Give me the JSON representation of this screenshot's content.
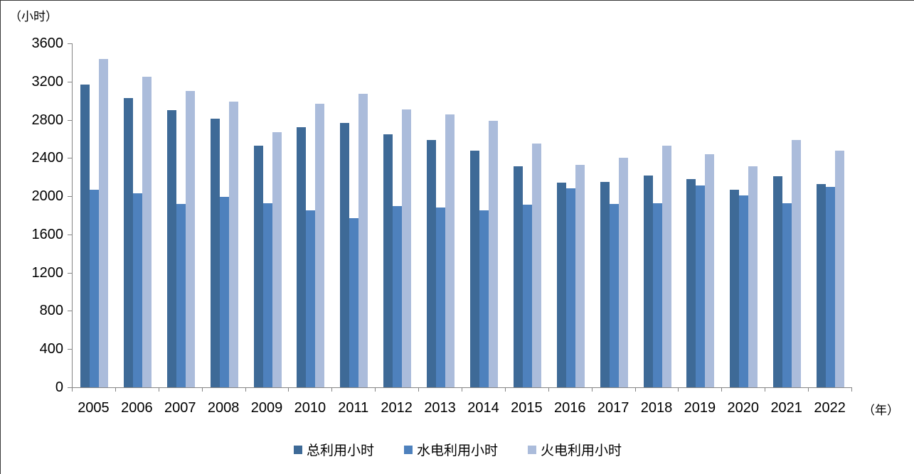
{
  "chart_data": {
    "type": "bar",
    "title": "",
    "y_axis_unit_label": "（小时）",
    "x_axis_unit_label": "（年）",
    "ylim": [
      0,
      3600
    ],
    "ytick_step": 400,
    "yticks": [
      0,
      400,
      800,
      1200,
      1600,
      2000,
      2400,
      2800,
      3200,
      3600
    ],
    "grid": false,
    "legend_position": "bottom",
    "categories": [
      "2005",
      "2006",
      "2007",
      "2008",
      "2009",
      "2010",
      "2011",
      "2012",
      "2013",
      "2014",
      "2015",
      "2016",
      "2017",
      "2018",
      "2019",
      "2020",
      "2021",
      "2022"
    ],
    "series": [
      {
        "name": "总利用小时",
        "color": "#3E6A97",
        "values": [
          3170,
          3030,
          2900,
          2810,
          2530,
          2720,
          2770,
          2650,
          2590,
          2480,
          2310,
          2140,
          2150,
          2220,
          2180,
          2070,
          2210,
          2130
        ]
      },
      {
        "name": "水电利用小时",
        "color": "#4E81BD",
        "values": [
          2070,
          2030,
          1920,
          1990,
          1930,
          1850,
          1770,
          1900,
          1880,
          1850,
          1910,
          2080,
          1920,
          1930,
          2110,
          2010,
          1930,
          2100
        ]
      },
      {
        "name": "火电利用小时",
        "color": "#ABBCDB",
        "values": [
          3440,
          3250,
          3100,
          2990,
          2670,
          2970,
          3070,
          2910,
          2860,
          2790,
          2550,
          2330,
          2400,
          2530,
          2440,
          2310,
          2590,
          2480
        ]
      }
    ]
  }
}
